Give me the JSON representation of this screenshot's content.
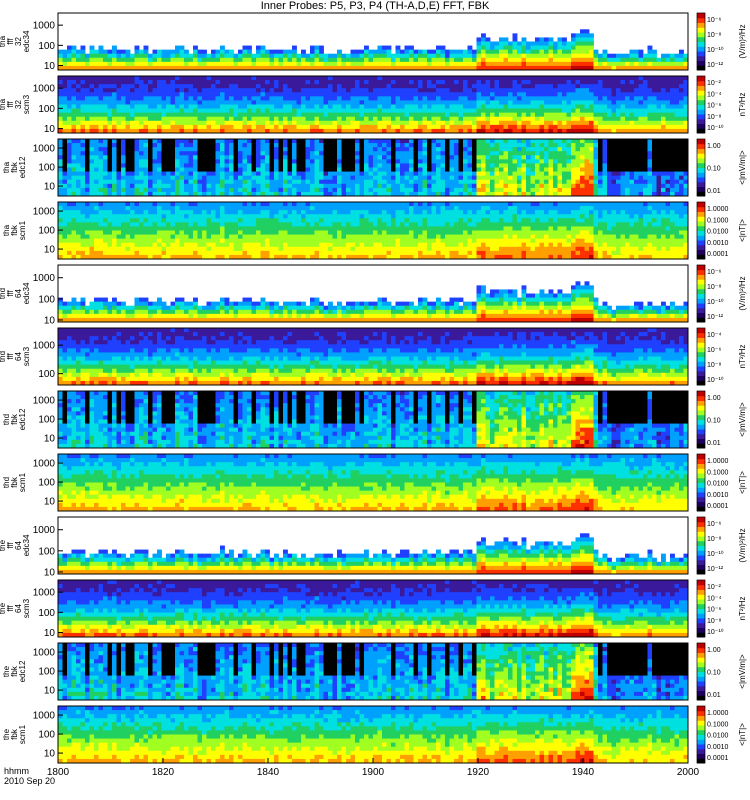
{
  "chart_data": {
    "type": "heatmap",
    "title": "Inner Probes: P5, P3, P4 (TH-A,D,E) FFT, FBK",
    "x_ticks": [
      "1800",
      "1820",
      "1840",
      "1900",
      "1920",
      "1940",
      "2000"
    ],
    "x_axis_label_line1": "hhmm",
    "x_axis_label_line2": "2010 Sep 20",
    "palette": [
      "#000000",
      "#1f0060",
      "#3a1a9a",
      "#2040ff",
      "#00a0ff",
      "#00e0e0",
      "#20d060",
      "#a0ff20",
      "#ffff00",
      "#ffa000",
      "#ff3000",
      "#c00000"
    ],
    "panels": [
      {
        "ylabel": [
          "tha",
          "fff",
          "32",
          "edc34"
        ],
        "yticks": [
          "1000",
          "100",
          "10"
        ],
        "ymin": 6,
        "ymax": 4000,
        "cb_ticks": [
          "10⁻⁶",
          "10⁻⁸",
          "10⁻¹⁰",
          "10⁻¹²"
        ],
        "cb_label": "(V/m)²/Hz",
        "style": "fft"
      },
      {
        "ylabel": [
          "tha",
          "fff",
          "32",
          "scm3"
        ],
        "yticks": [
          "1000",
          "100",
          "10"
        ],
        "ymin": 6,
        "ymax": 4000,
        "cb_ticks": [
          "10⁻²",
          "10⁻⁴",
          "10⁻⁶",
          "10⁻⁸",
          "10⁻¹⁰"
        ],
        "cb_label": "nT²/Hz",
        "style": "scm"
      },
      {
        "ylabel": [
          "tha",
          "fbk",
          "edc12"
        ],
        "yticks": [
          "1000",
          "100",
          "10"
        ],
        "ymin": 3,
        "ymax": 3000,
        "cb_ticks": [
          "1.00",
          "0.10",
          "0.01"
        ],
        "cb_label": "<|mV/m|>",
        "style": "fbk"
      },
      {
        "ylabel": [
          "tha",
          "fbk",
          "scm1"
        ],
        "yticks": [
          "1000",
          "100",
          "10"
        ],
        "ymin": 3,
        "ymax": 3000,
        "cb_ticks": [
          "1.0000",
          "0.1000",
          "0.0100",
          "0.0010",
          "0.0001"
        ],
        "cb_label": "<|nT|>",
        "style": "fbkscm"
      },
      {
        "ylabel": [
          "thd",
          "fff",
          "64",
          "edc34"
        ],
        "yticks": [
          "1000",
          "100",
          "10"
        ],
        "ymin": 8,
        "ymax": 4000,
        "cb_ticks": [
          "10⁻⁶",
          "10⁻⁸",
          "10⁻¹⁰",
          "10⁻¹²"
        ],
        "cb_label": "(V/m)²/Hz",
        "style": "fft"
      },
      {
        "ylabel": [
          "thd",
          "fff",
          "64",
          "scm3"
        ],
        "yticks": [
          "1000",
          "100"
        ],
        "ymin": 40,
        "ymax": 4000,
        "cb_ticks": [
          "10⁻⁴",
          "10⁻⁶",
          "10⁻⁸",
          "10⁻¹⁰"
        ],
        "cb_label": "nT²/Hz",
        "style": "scm"
      },
      {
        "ylabel": [
          "thd",
          "fbk",
          "edc12"
        ],
        "yticks": [
          "1000",
          "100",
          "10"
        ],
        "ymin": 3,
        "ymax": 3000,
        "cb_ticks": [
          "1.00",
          "0.10",
          "0.01"
        ],
        "cb_label": "<|mV/m|>",
        "style": "fbk"
      },
      {
        "ylabel": [
          "thd",
          "fbk",
          "scm1"
        ],
        "yticks": [
          "1000",
          "100",
          "10"
        ],
        "ymin": 3,
        "ymax": 3000,
        "cb_ticks": [
          "1.0000",
          "0.1000",
          "0.0100",
          "0.0010",
          "0.0001"
        ],
        "cb_label": "<|nT|>",
        "style": "fbkscm"
      },
      {
        "ylabel": [
          "the",
          "fff",
          "64",
          "edc34"
        ],
        "yticks": [
          "1000",
          "100",
          "10"
        ],
        "ymin": 8,
        "ymax": 4000,
        "cb_ticks": [
          "10⁻⁶",
          "10⁻⁸",
          "10⁻¹⁰",
          "10⁻¹²"
        ],
        "cb_label": "(V/m)²/Hz",
        "style": "fft"
      },
      {
        "ylabel": [
          "the",
          "fff",
          "64",
          "scm3"
        ],
        "yticks": [
          "1000",
          "100",
          "10"
        ],
        "ymin": 6,
        "ymax": 4000,
        "cb_ticks": [
          "10⁻²",
          "10⁻⁴",
          "10⁻⁶",
          "10⁻⁸",
          "10⁻¹⁰"
        ],
        "cb_label": "nT²/Hz",
        "style": "scm"
      },
      {
        "ylabel": [
          "the",
          "fbk",
          "edc12"
        ],
        "yticks": [
          "1000",
          "100",
          "10"
        ],
        "ymin": 3,
        "ymax": 3000,
        "cb_ticks": [
          "1.00",
          "0.10",
          "0.01"
        ],
        "cb_label": "<|mV/m|>",
        "style": "fbk"
      },
      {
        "ylabel": [
          "the",
          "fbk",
          "scm1"
        ],
        "yticks": [
          "1000",
          "100",
          "10"
        ],
        "ymin": 3,
        "ymax": 3000,
        "cb_ticks": [
          "1.0000",
          "0.1000",
          "0.0100",
          "0.0010",
          "0.0001"
        ],
        "cb_label": "<|nT|>",
        "style": "fbkscm"
      }
    ]
  }
}
